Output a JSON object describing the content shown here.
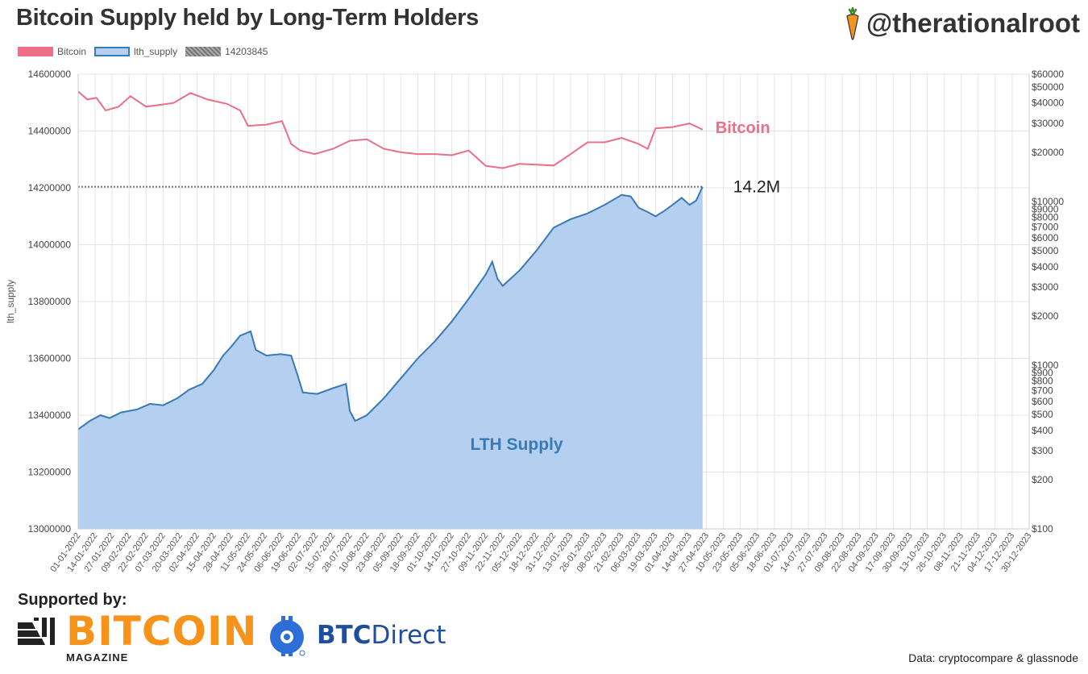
{
  "header": {
    "title": "Bitcoin Supply held by Long-Term Holders",
    "handle": "@therationalroot"
  },
  "legend": {
    "items": [
      {
        "label": "Bitcoin",
        "color": "#ec6e87"
      },
      {
        "label": "lth_supply",
        "color": "#3a7ab4"
      },
      {
        "label": "14203845",
        "color": "#888888"
      }
    ]
  },
  "footer": {
    "supported_by": "Supported by:",
    "sponsor1_word": "BITCOIN",
    "sponsor1_sub": "MAGAZINE",
    "sponsor2_word_a": "BTC",
    "sponsor2_word_b": "Direct",
    "source": "Data: cryptocompare & glassnode"
  },
  "chart_data": {
    "type": "line",
    "title": "Bitcoin Supply held by Long-Term Holders",
    "ylabel": "lth_supply",
    "ylim": [
      13000000,
      14600000
    ],
    "y_ticks": [
      "14600000",
      "14400000",
      "14200000",
      "14000000",
      "13800000",
      "13600000",
      "13400000",
      "13200000",
      "13000000"
    ],
    "y_right_scale": "log",
    "y_right_ticks": [
      "$60000",
      "$50000",
      "$40000",
      "$30000",
      "$20000",
      "$10000",
      "$9000",
      "$8000",
      "$7000",
      "$6000",
      "$5000",
      "$4000",
      "$3000",
      "$2000",
      "$1000",
      "$900",
      "$800",
      "$700",
      "$600",
      "$500",
      "$400",
      "$300",
      "$200",
      "$100"
    ],
    "x_ticks": [
      "01-01-2022",
      "14-01-2022",
      "27-01-2022",
      "09-02-2022",
      "22-02-2022",
      "07-03-2022",
      "20-03-2022",
      "02-04-2022",
      "15-04-2022",
      "28-04-2022",
      "11-05-2022",
      "24-05-2022",
      "06-06-2022",
      "19-06-2022",
      "02-07-2022",
      "15-07-2022",
      "28-07-2022",
      "10-08-2022",
      "23-08-2022",
      "05-09-2022",
      "18-09-2022",
      "01-10-2022",
      "14-10-2022",
      "27-10-2022",
      "09-11-2022",
      "22-11-2022",
      "05-12-2022",
      "18-12-2022",
      "31-12-2022",
      "13-01-2023",
      "26-01-2023",
      "08-02-2023",
      "21-02-2023",
      "06-03-2023",
      "19-03-2023",
      "01-04-2023",
      "14-04-2023",
      "27-04-2023",
      "10-05-2023",
      "23-05-2023",
      "05-06-2023",
      "18-06-2023",
      "01-07-2023",
      "14-07-2023",
      "27-07-2023",
      "09-08-2023",
      "22-08-2023",
      "04-09-2023",
      "17-09-2023",
      "30-09-2023",
      "13-10-2023",
      "26-10-2023",
      "08-11-2023",
      "21-11-2023",
      "04-12-2023",
      "17-12-2023",
      "30-12-2023"
    ],
    "reference_line": {
      "value": 14203845,
      "label": "14.2M"
    },
    "series": [
      {
        "name": "lth_supply",
        "color": "#3a7ab4",
        "fill": "#b4cfef",
        "axis": "left",
        "annotation": "LTH Supply",
        "points": [
          [
            "01-01-2022",
            13350000
          ],
          [
            "10-01-2022",
            13380000
          ],
          [
            "18-01-2022",
            13400000
          ],
          [
            "25-01-2022",
            13390000
          ],
          [
            "03-02-2022",
            13410000
          ],
          [
            "15-02-2022",
            13420000
          ],
          [
            "25-02-2022",
            13440000
          ],
          [
            "07-03-2022",
            13435000
          ],
          [
            "18-03-2022",
            13460000
          ],
          [
            "27-03-2022",
            13490000
          ],
          [
            "06-04-2022",
            13510000
          ],
          [
            "15-04-2022",
            13560000
          ],
          [
            "22-04-2022",
            13610000
          ],
          [
            "28-04-2022",
            13640000
          ],
          [
            "05-05-2022",
            13680000
          ],
          [
            "13-05-2022",
            13695000
          ],
          [
            "17-05-2022",
            13630000
          ],
          [
            "25-05-2022",
            13610000
          ],
          [
            "05-06-2022",
            13615000
          ],
          [
            "13-06-2022",
            13610000
          ],
          [
            "18-06-2022",
            13540000
          ],
          [
            "22-06-2022",
            13480000
          ],
          [
            "03-07-2022",
            13475000
          ],
          [
            "15-07-2022",
            13495000
          ],
          [
            "25-07-2022",
            13510000
          ],
          [
            "28-07-2022",
            13415000
          ],
          [
            "01-08-2022",
            13380000
          ],
          [
            "10-08-2022",
            13400000
          ],
          [
            "23-08-2022",
            13460000
          ],
          [
            "05-09-2022",
            13530000
          ],
          [
            "18-09-2022",
            13600000
          ],
          [
            "01-10-2022",
            13660000
          ],
          [
            "14-10-2022",
            13730000
          ],
          [
            "27-10-2022",
            13810000
          ],
          [
            "09-11-2022",
            13895000
          ],
          [
            "14-11-2022",
            13940000
          ],
          [
            "18-11-2022",
            13880000
          ],
          [
            "22-11-2022",
            13855000
          ],
          [
            "05-12-2022",
            13910000
          ],
          [
            "18-12-2022",
            13980000
          ],
          [
            "31-12-2022",
            14060000
          ],
          [
            "13-01-2023",
            14090000
          ],
          [
            "26-01-2023",
            14110000
          ],
          [
            "08-02-2023",
            14140000
          ],
          [
            "21-02-2023",
            14175000
          ],
          [
            "28-02-2023",
            14170000
          ],
          [
            "06-03-2023",
            14130000
          ],
          [
            "13-03-2023",
            14115000
          ],
          [
            "19-03-2023",
            14100000
          ],
          [
            "26-03-2023",
            14120000
          ],
          [
            "01-04-2023",
            14140000
          ],
          [
            "08-04-2023",
            14165000
          ],
          [
            "14-04-2023",
            14140000
          ],
          [
            "19-04-2023",
            14155000
          ],
          [
            "24-04-2023",
            14203845
          ]
        ]
      },
      {
        "name": "Bitcoin",
        "color": "#ec6e87",
        "axis": "right",
        "annotation": "Bitcoin",
        "points": [
          [
            "01-01-2022",
            47000
          ],
          [
            "08-01-2022",
            42000
          ],
          [
            "15-01-2022",
            43000
          ],
          [
            "22-01-2022",
            36000
          ],
          [
            "01-02-2022",
            38000
          ],
          [
            "10-02-2022",
            44000
          ],
          [
            "22-02-2022",
            38000
          ],
          [
            "05-03-2022",
            39000
          ],
          [
            "15-03-2022",
            40000
          ],
          [
            "28-03-2022",
            46000
          ],
          [
            "10-04-2022",
            42000
          ],
          [
            "25-04-2022",
            39500
          ],
          [
            "05-05-2022",
            36000
          ],
          [
            "11-05-2022",
            29000
          ],
          [
            "25-05-2022",
            29500
          ],
          [
            "06-06-2022",
            31000
          ],
          [
            "13-06-2022",
            22500
          ],
          [
            "20-06-2022",
            20500
          ],
          [
            "01-07-2022",
            19500
          ],
          [
            "15-07-2022",
            21000
          ],
          [
            "28-07-2022",
            23500
          ],
          [
            "10-08-2022",
            24000
          ],
          [
            "23-08-2022",
            21000
          ],
          [
            "05-09-2022",
            20000
          ],
          [
            "18-09-2022",
            19500
          ],
          [
            "01-10-2022",
            19500
          ],
          [
            "14-10-2022",
            19200
          ],
          [
            "27-10-2022",
            20500
          ],
          [
            "09-11-2022",
            16500
          ],
          [
            "22-11-2022",
            16000
          ],
          [
            "05-12-2022",
            17000
          ],
          [
            "18-12-2022",
            16800
          ],
          [
            "31-12-2022",
            16600
          ],
          [
            "13-01-2023",
            19500
          ],
          [
            "26-01-2023",
            23000
          ],
          [
            "08-02-2023",
            23000
          ],
          [
            "21-02-2023",
            24500
          ],
          [
            "06-03-2023",
            22500
          ],
          [
            "13-03-2023",
            21000
          ],
          [
            "19-03-2023",
            28000
          ],
          [
            "01-04-2023",
            28500
          ],
          [
            "14-04-2023",
            30000
          ],
          [
            "20-04-2023",
            28500
          ],
          [
            "24-04-2023",
            27500
          ]
        ]
      }
    ],
    "legend": "top-left",
    "grid": true
  }
}
